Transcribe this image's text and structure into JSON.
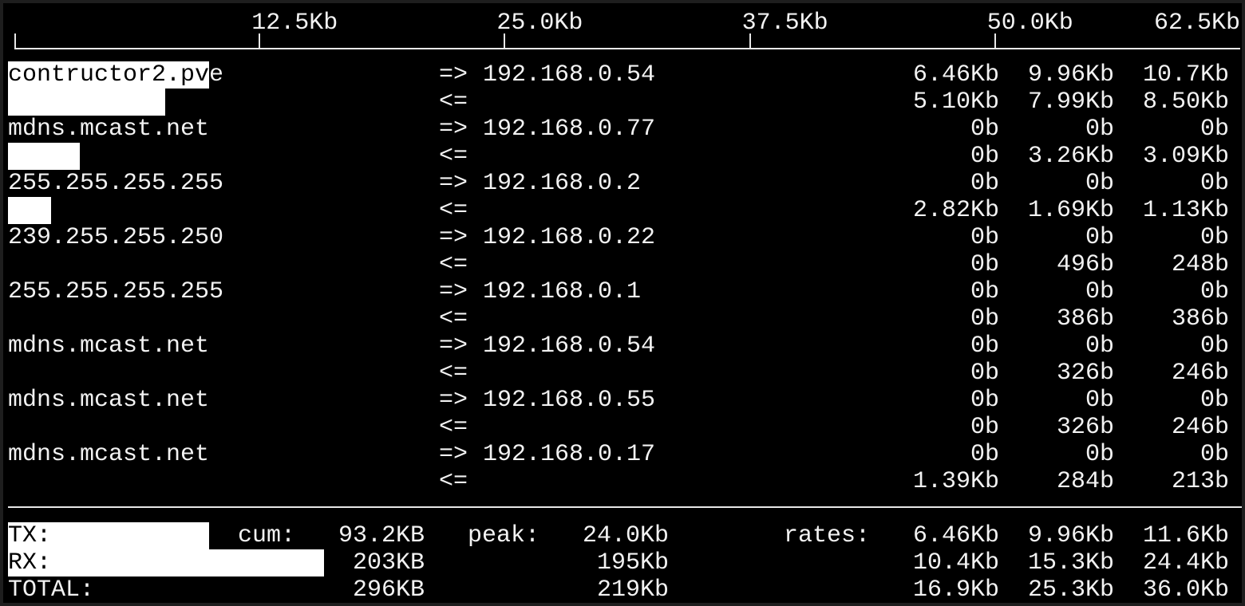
{
  "scale": {
    "labels": [
      "12.5Kb",
      "25.0Kb",
      "37.5Kb",
      "50.0Kb",
      "62.5Kb"
    ],
    "max_kb": 62.5
  },
  "flows": [
    {
      "host": "contructor2.pve",
      "peer": "192.168.0.54",
      "out": [
        "6.46Kb",
        "9.96Kb",
        "10.7Kb"
      ],
      "in": [
        "5.10Kb",
        "7.99Kb",
        "8.50Kb"
      ],
      "bar_out": 0.165,
      "bar_in": 0.129
    },
    {
      "host": "mdns.mcast.net",
      "peer": "192.168.0.77",
      "out": [
        "0b",
        "0b",
        "0b"
      ],
      "in": [
        "0b",
        "3.26Kb",
        "3.09Kb"
      ],
      "bar_out": 0,
      "bar_in": 0.059
    },
    {
      "host": "255.255.255.255",
      "peer": "192.168.0.2",
      "out": [
        "0b",
        "0b",
        "0b"
      ],
      "in": [
        "2.82Kb",
        "1.69Kb",
        "1.13Kb"
      ],
      "bar_out": 0,
      "bar_in": 0.035
    },
    {
      "host": "239.255.255.250",
      "peer": "192.168.0.22",
      "out": [
        "0b",
        "0b",
        "0b"
      ],
      "in": [
        "0b",
        "496b",
        "248b"
      ],
      "bar_out": 0,
      "bar_in": 0
    },
    {
      "host": "255.255.255.255",
      "peer": "192.168.0.1",
      "out": [
        "0b",
        "0b",
        "0b"
      ],
      "in": [
        "0b",
        "386b",
        "386b"
      ],
      "bar_out": 0,
      "bar_in": 0
    },
    {
      "host": "mdns.mcast.net",
      "peer": "192.168.0.54",
      "out": [
        "0b",
        "0b",
        "0b"
      ],
      "in": [
        "0b",
        "326b",
        "246b"
      ],
      "bar_out": 0,
      "bar_in": 0
    },
    {
      "host": "mdns.mcast.net",
      "peer": "192.168.0.55",
      "out": [
        "0b",
        "0b",
        "0b"
      ],
      "in": [
        "0b",
        "326b",
        "246b"
      ],
      "bar_out": 0,
      "bar_in": 0
    },
    {
      "host": "mdns.mcast.net",
      "peer": "192.168.0.17",
      "out": [
        "0b",
        "0b",
        "0b"
      ],
      "in": [
        "1.39Kb",
        "284b",
        "213b"
      ],
      "bar_out": 0,
      "bar_in": 0
    }
  ],
  "arrows": {
    "out": "=>",
    "in": "<="
  },
  "totals": {
    "cum_label": "cum:",
    "peak_label": "peak:",
    "rates_label": "rates:",
    "rows": [
      {
        "label": "TX:",
        "cum": "93.2KB",
        "peak": "24.0Kb",
        "rates": [
          "6.46Kb",
          "9.96Kb",
          "11.6Kb"
        ],
        "bar": 0.165
      },
      {
        "label": "RX:",
        "cum": "203KB",
        "peak": "195Kb",
        "rates": [
          "10.4Kb",
          "15.3Kb",
          "24.4Kb"
        ],
        "bar": 0.259
      },
      {
        "label": "TOTAL:",
        "cum": "296KB",
        "peak": "219Kb",
        "rates": [
          "16.9Kb",
          "25.3Kb",
          "36.0Kb"
        ],
        "bar": 0
      }
    ]
  }
}
